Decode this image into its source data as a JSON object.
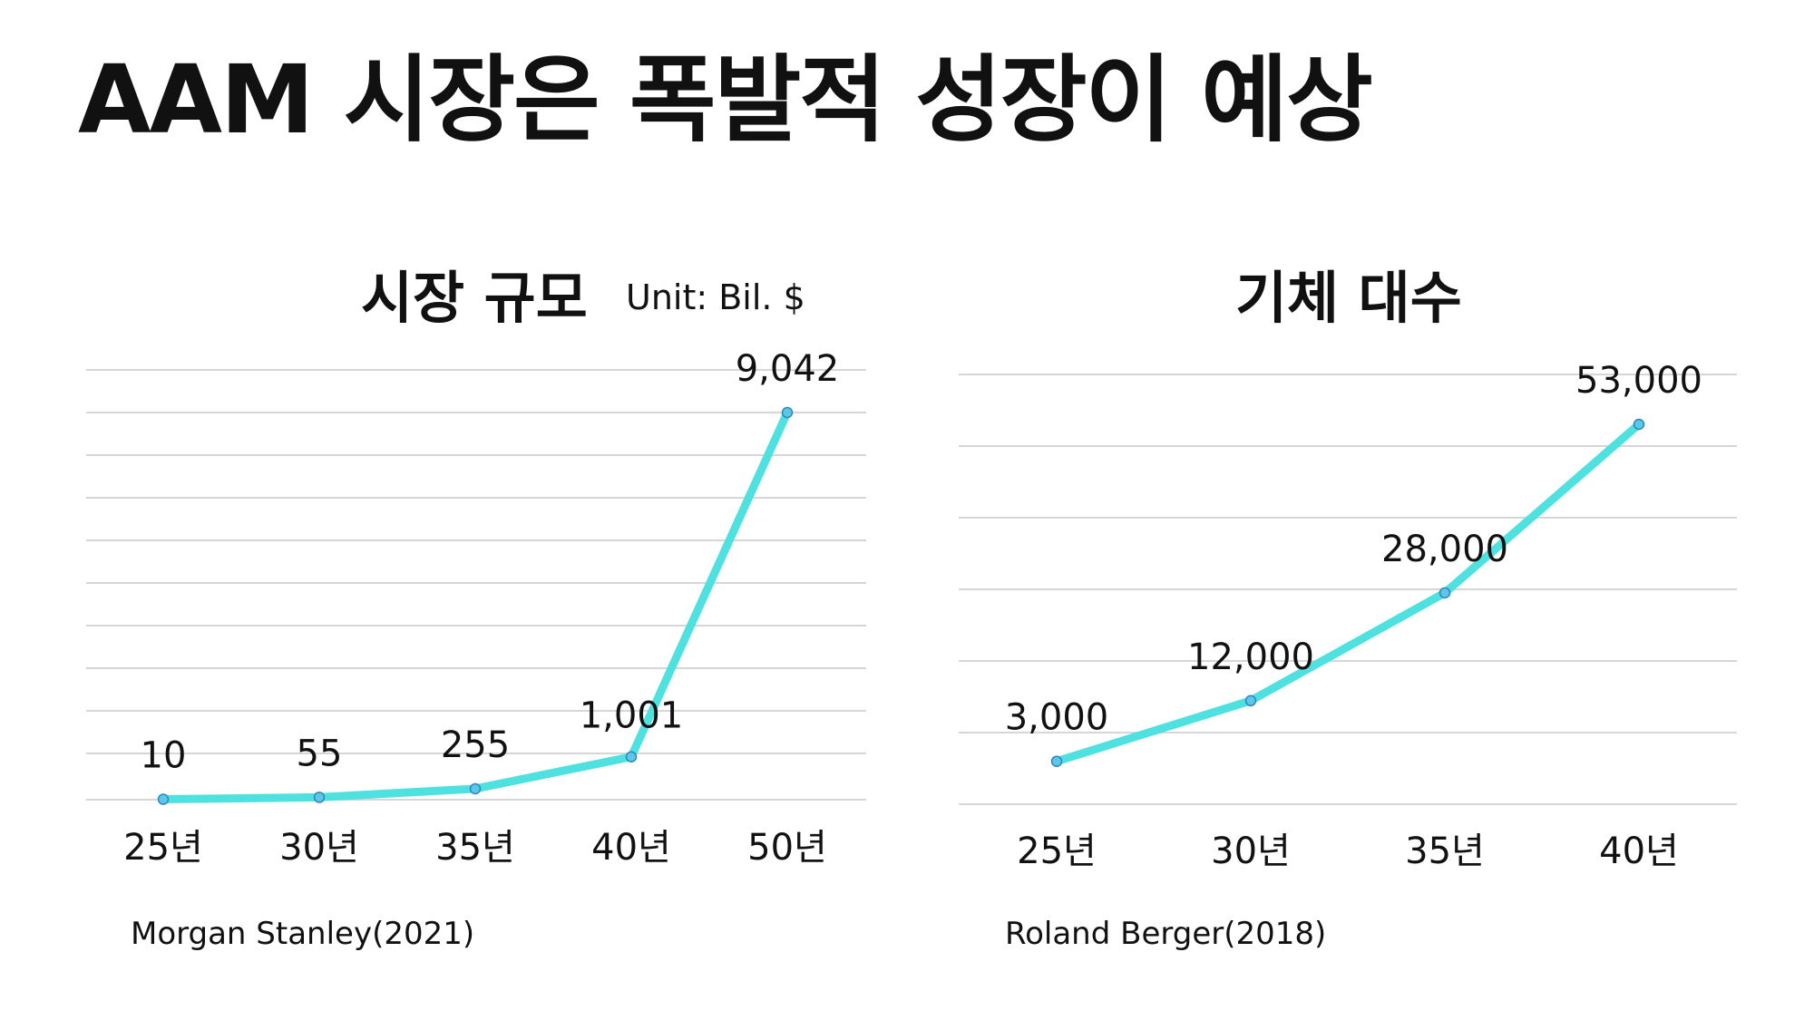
{
  "title": "AAM 시장은 폭발적 성장이 예상",
  "colors": {
    "line": "#4fe0e0",
    "marker": "#5cc8e6",
    "grid": "#d6d6d6"
  },
  "chart_data": [
    {
      "type": "line",
      "title": "시장 규모",
      "unit": "Unit: Bil. $",
      "source": "Morgan Stanley(2021)",
      "categories": [
        "25년",
        "30년",
        "35년",
        "40년",
        "50년"
      ],
      "values": [
        10,
        55,
        255,
        1001,
        9042
      ],
      "labels": [
        "10",
        "55",
        "255",
        "1,001",
        "9,042"
      ],
      "ylim": [
        0,
        9042
      ],
      "grid": true
    },
    {
      "type": "line",
      "title": "기체 대수",
      "source": "Roland Berger(2018)",
      "categories": [
        "25년",
        "30년",
        "35년",
        "40년"
      ],
      "values": [
        3000,
        12000,
        28000,
        53000
      ],
      "labels": [
        "3,000",
        "12,000",
        "28,000",
        "53,000"
      ],
      "ylim": [
        0,
        53000
      ],
      "grid": true
    }
  ]
}
